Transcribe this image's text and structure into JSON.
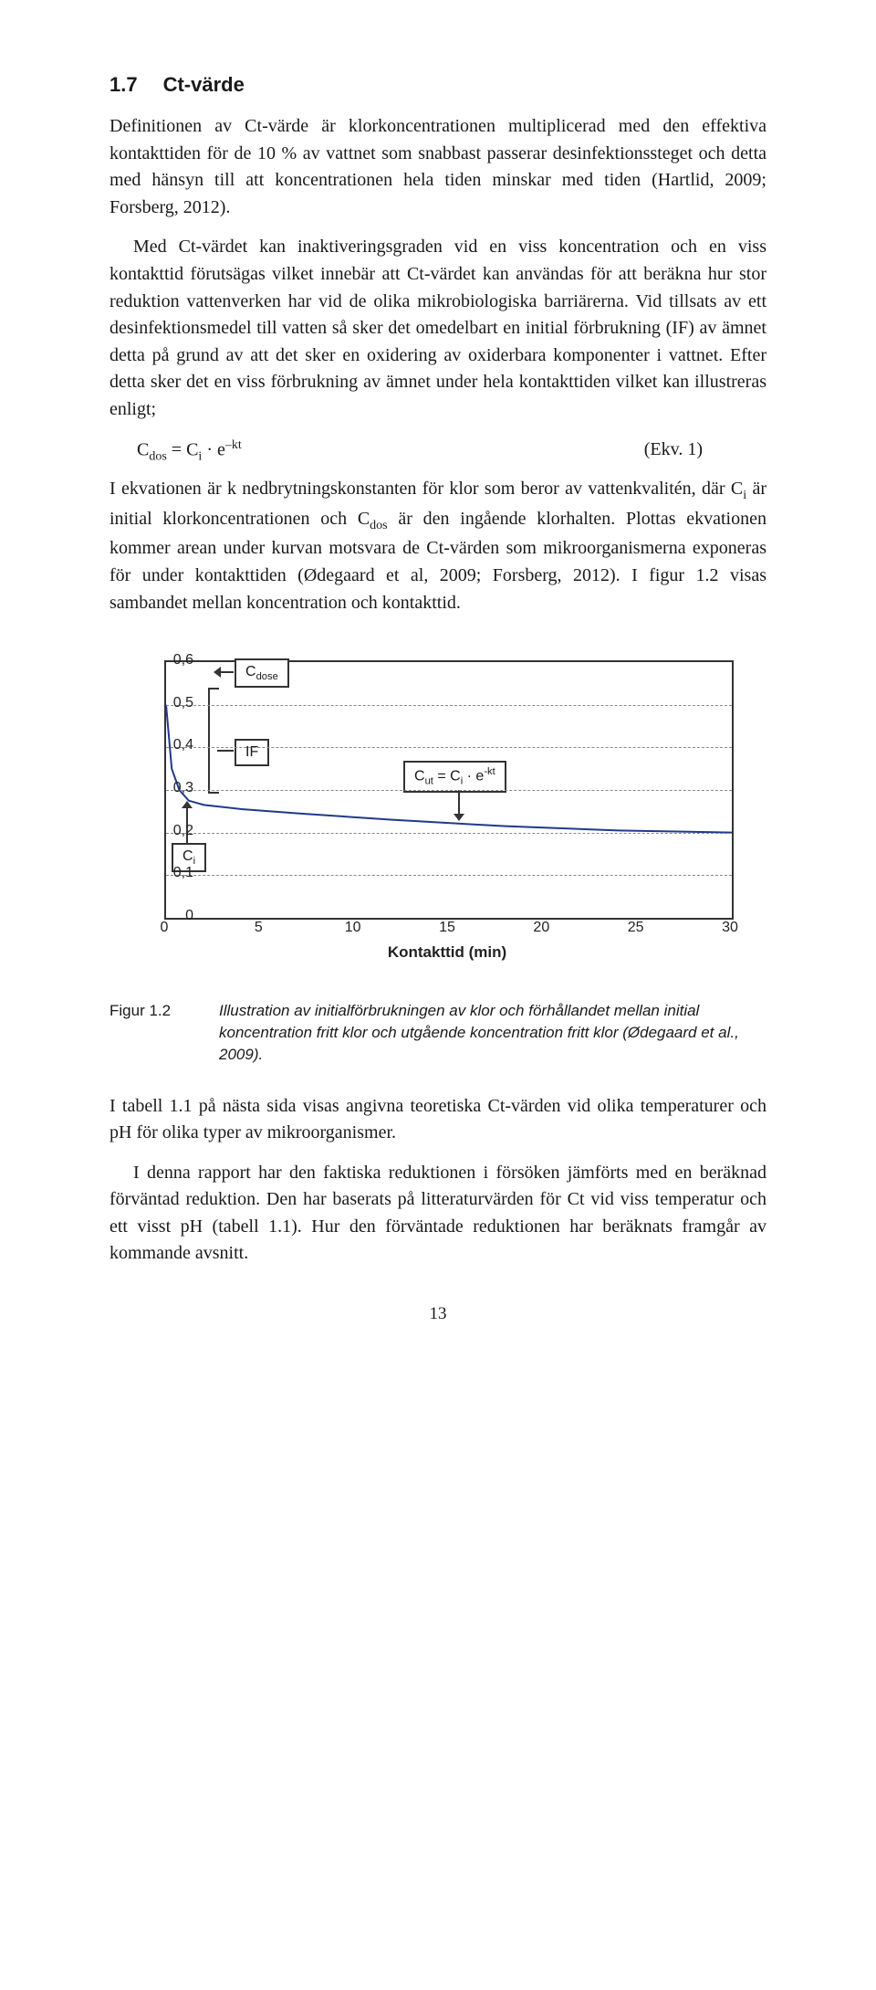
{
  "section": {
    "number": "1.7",
    "title": "Ct-värde"
  },
  "paragraphs": {
    "p1": "Definitionen av Ct-värde är klorkoncentrationen multiplicerad med den effektiva kontakttiden för de 10 % av vattnet som snabbast passerar desinfektionssteget och detta med hänsyn till att koncentrationen hela tiden minskar med tiden (Hartlid, 2009; Forsberg, 2012).",
    "p2": "Med Ct-värdet kan inaktiveringsgraden vid en viss koncentration och en viss kontakttid förutsägas vilket innebär att Ct-värdet kan användas för att beräkna hur stor reduktion vattenverken har vid de olika mikrobiologiska barriärerna. Vid tillsats av ett desinfektionsmedel till vatten så sker det omedelbart en initial förbrukning (IF) av ämnet detta på grund av att det sker en oxidering av oxiderbara komponenter i vattnet. Efter detta sker det en viss förbrukning av ämnet under hela kontakttiden vilket kan illustreras enligt;",
    "eq_number": "(Ekv. 1)",
    "p3_a": "I ekvationen är k nedbrytningskonstanten för klor som beror av vattenkvalitén, där C",
    "p3_b": " är initial klorkoncentrationen och C",
    "p3_c": " är den ingående klorhalten. Plottas ekvationen kommer arean under kurvan motsvara de Ct-värden som mikroorganismerna exponeras för under kontakttiden (Ødegaard et al, 2009; Forsberg, 2012). I figur 1.2 visas sambandet mellan koncentration och kontakttid.",
    "p4": "I tabell 1.1 på nästa sida visas angivna teoretiska Ct-värden vid olika temperaturer och pH för olika typer av mikroorganismer.",
    "p5": "I denna rapport har den faktiska reduktionen i försöken jämförts med en beräknad förväntad reduktion. Den har baserats på litteraturvärden för Ct vid viss temperatur och ett visst pH (tabell 1.1). Hur den förväntade reduktionen har beräknats framgår av kommande avsnitt."
  },
  "figure": {
    "label": "Figur 1.2",
    "caption": "Illustration av initialförbrukningen av klor och förhållandet mellan initial koncentration fritt klor och utgående koncentration fritt klor (Ødegaard et al., 2009).",
    "xlabel": "Kontakttid (min)",
    "xticks": [
      "0",
      "5",
      "10",
      "15",
      "20",
      "25",
      "30"
    ],
    "yticks": [
      "0",
      "0,1",
      "0,2",
      "0,3",
      "0,4",
      "0,5",
      "0,6"
    ],
    "xlim": [
      0,
      30
    ],
    "ylim": [
      0,
      0.6
    ],
    "grid_ypositions": [
      0.1,
      0.2,
      0.3,
      0.4,
      0.5
    ],
    "curve_points": [
      [
        0,
        0.5
      ],
      [
        0.3,
        0.35
      ],
      [
        0.7,
        0.3
      ],
      [
        1.2,
        0.275
      ],
      [
        2,
        0.265
      ],
      [
        4,
        0.255
      ],
      [
        7,
        0.245
      ],
      [
        12,
        0.23
      ],
      [
        18,
        0.215
      ],
      [
        24,
        0.205
      ],
      [
        30,
        0.2
      ]
    ],
    "curve_color": "#1f3a8a",
    "curve_width": 2,
    "callouts": {
      "cdose": "Cdose",
      "if": "IF",
      "cut_prefix": "C",
      "cut_sub": "ut",
      "cut_mid": " = C",
      "cut_sub2": "i",
      "cut_tail": " · e",
      "cut_sup": "-kt",
      "ci": "Ci"
    },
    "colors": {
      "axis": "#333333",
      "grid": "#888888",
      "box_border": "#333333",
      "bg": "#ffffff"
    }
  },
  "pagenum": "13"
}
